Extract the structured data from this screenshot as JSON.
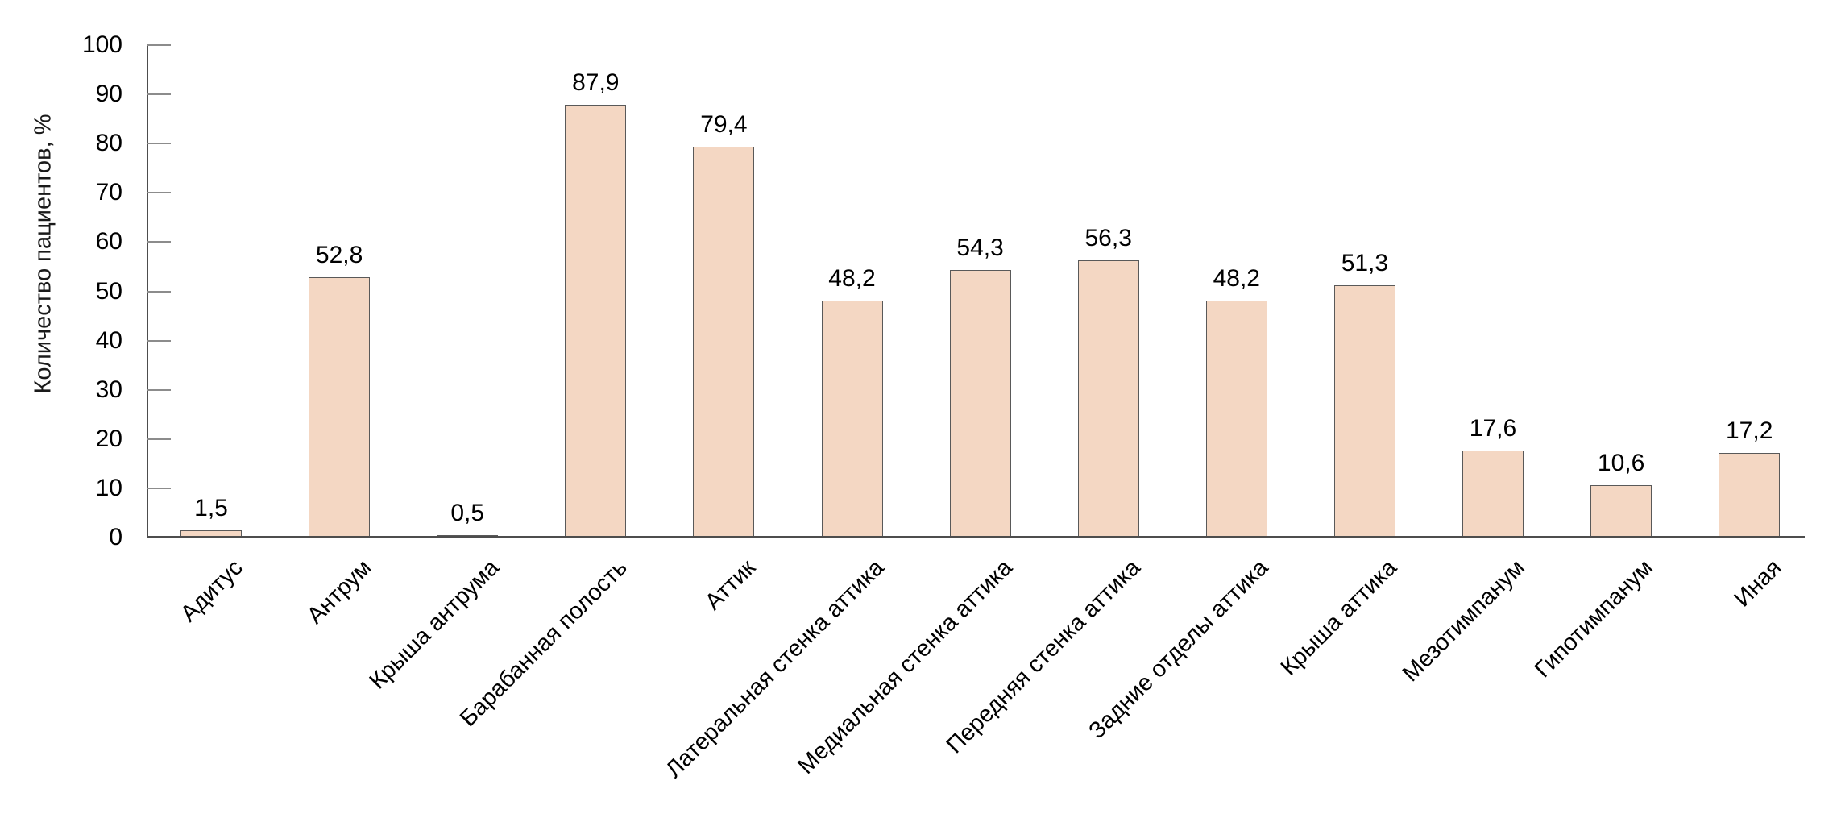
{
  "chart_data": {
    "type": "bar",
    "title": "",
    "ylabel": "Количество пациентов, %",
    "xlabel": "",
    "ylim": [
      0,
      100
    ],
    "yticks": [
      0,
      10,
      20,
      30,
      40,
      50,
      60,
      70,
      80,
      90,
      100
    ],
    "grid": false,
    "legend_position": "none",
    "decimal_separator": ",",
    "categories": [
      "Адитус",
      "Антрум",
      "Крыша антрума",
      "Барабанная полость",
      "Аттик",
      "Латеральная стенка аттика",
      "Медиальная стенка аттика",
      "Передняя стенка аттика",
      "Задние отделы аттика",
      "Крыша аттика",
      "Мезотимпанум",
      "Гипотимпанум",
      "Иная"
    ],
    "values": [
      1.5,
      52.8,
      0.5,
      87.9,
      79.4,
      48.2,
      54.3,
      56.3,
      48.2,
      51.3,
      17.6,
      10.6,
      17.2
    ],
    "value_labels": [
      "1,5",
      "52,8",
      "0,5",
      "87,9",
      "79,4",
      "48,2",
      "54,3",
      "56,3",
      "48,2",
      "51,3",
      "17,6",
      "10,6",
      "17,2"
    ],
    "colors": {
      "bar_fill": "#f4d7c3",
      "bar_border": "#595959",
      "axis": "#4d4d4d",
      "tick": "#8c8c8c",
      "text": "#000000"
    }
  }
}
